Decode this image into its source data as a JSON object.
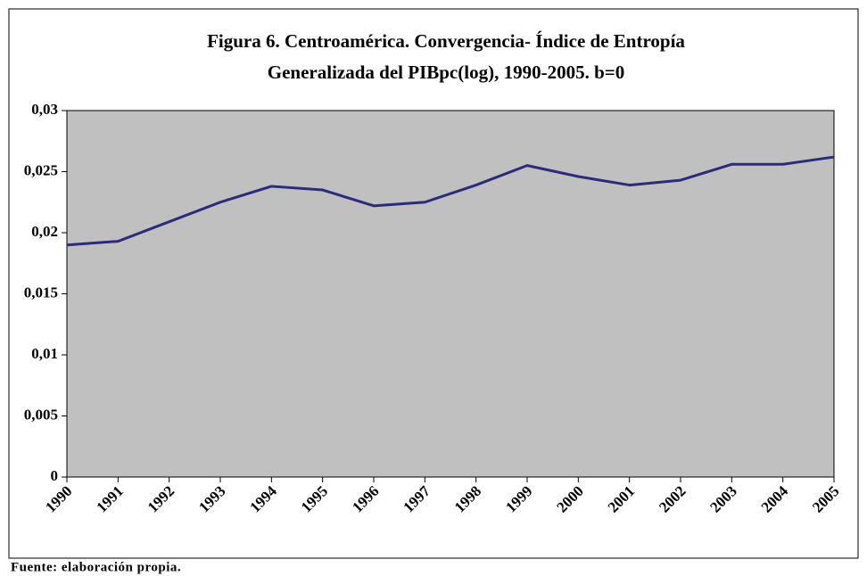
{
  "chart_data": {
    "type": "line",
    "title": [
      "Figura 6. Centroamérica. Convergencia- Índice de Entropía",
      "Generalizada del PIBpc(log), 1990-2005. b=0"
    ],
    "categories": [
      "1990",
      "1991",
      "1992",
      "1993",
      "1994",
      "1995",
      "1996",
      "1997",
      "1998",
      "1999",
      "2000",
      "2001",
      "2002",
      "2003",
      "2004",
      "2005"
    ],
    "values": [
      0.019,
      0.0193,
      0.0209,
      0.0225,
      0.0238,
      0.0235,
      0.0222,
      0.0225,
      0.0239,
      0.0255,
      0.0246,
      0.0239,
      0.0243,
      0.0256,
      0.0256,
      0.0262
    ],
    "color": "#2b2b7a",
    "ylim": [
      0,
      0.03
    ],
    "yticks": [
      0,
      {
        "value": 0.005,
        "label": "0,005"
      },
      {
        "value": 0.01,
        "label": "0,01"
      },
      {
        "value": 0.015,
        "label": "0,015"
      },
      {
        "value": 0.02,
        "label": "0,02"
      },
      {
        "value": 0.025,
        "label": "0,025"
      },
      {
        "value": 0.03,
        "label": "0,03"
      }
    ],
    "plot_background": "#c0c0c0",
    "source": "Fuente: elaboración propia."
  }
}
